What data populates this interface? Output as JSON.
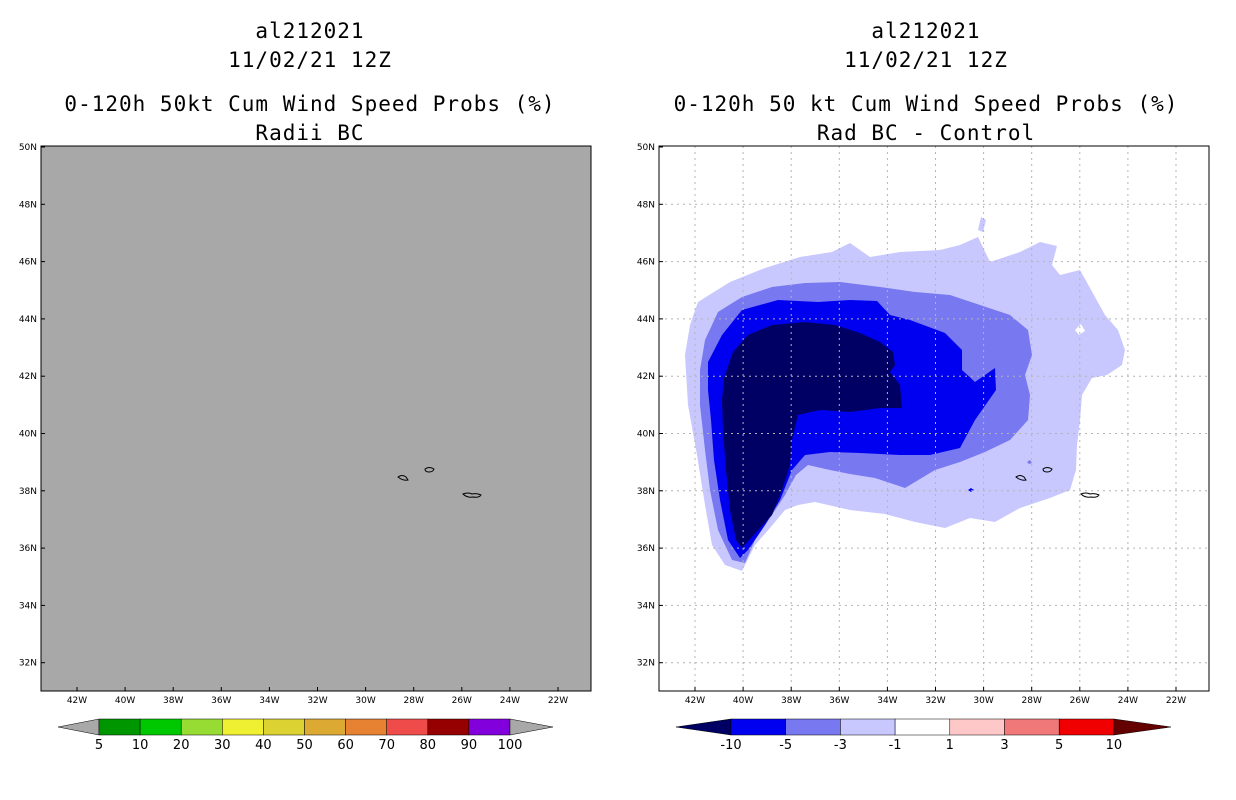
{
  "left_panel": {
    "title_lines": [
      "al212021",
      "11/02/21 12Z",
      "0-120h 50kt Cum Wind Speed Probs (%)",
      "Radii BC"
    ],
    "map_fill": "#a8a8a8",
    "colorbar": {
      "labels": [
        "5",
        "10",
        "20",
        "30",
        "40",
        "50",
        "60",
        "70",
        "80",
        "90",
        "100"
      ],
      "colors": [
        "#009600",
        "#00c800",
        "#96dc32",
        "#f0f032",
        "#dcd232",
        "#dcaa32",
        "#e68232",
        "#f04b4b",
        "#960000",
        "#8200dc"
      ],
      "end_color": "#a8a8a8"
    }
  },
  "right_panel": {
    "title_lines": [
      "al212021",
      "11/02/21 12Z",
      "0-120h 50 kt Cum Wind Speed Probs (%)",
      "Rad BC - Control"
    ],
    "map_fill": "#ffffff",
    "levels": [
      {
        "label": "-1 to -3",
        "color": "#c8c8ff"
      },
      {
        "label": "-3 to -5",
        "color": "#7878f0"
      },
      {
        "label": "-5 to -10",
        "color": "#0000f0"
      },
      {
        "label": "< -10",
        "color": "#000064"
      }
    ],
    "colorbar": {
      "labels": [
        "-10",
        "-5",
        "-3",
        "-1",
        "1",
        "3",
        "5",
        "10"
      ],
      "colors": [
        "#0000f0",
        "#7878f0",
        "#c8c8ff",
        "#ffffff",
        "#ffc8c8",
        "#f07878",
        "#f00000"
      ],
      "left_end": "#000064",
      "right_end": "#640000"
    }
  },
  "axes": {
    "lat_labels": [
      "50N",
      "48N",
      "46N",
      "44N",
      "42N",
      "40N",
      "38N",
      "36N",
      "34N",
      "32N"
    ],
    "lon_labels": [
      "42W",
      "40W",
      "38W",
      "36W",
      "34W",
      "32W",
      "30W",
      "28W",
      "26W",
      "24W",
      "22W"
    ]
  }
}
